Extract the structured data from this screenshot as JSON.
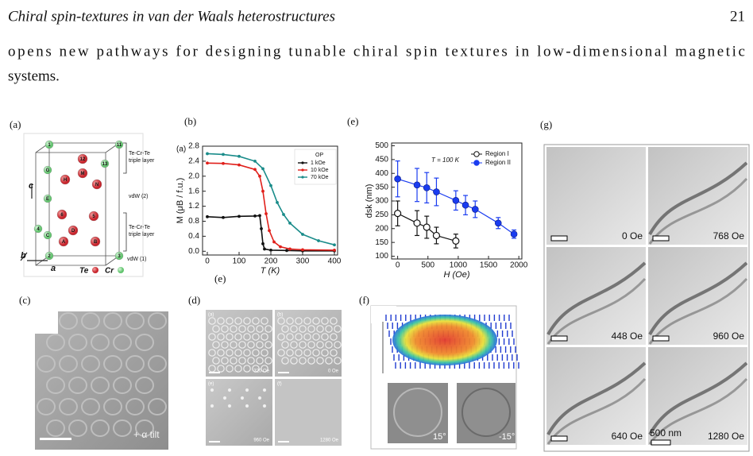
{
  "header": {
    "title": "Chiral spin-textures in van der Waals heterostructures",
    "page": "21"
  },
  "body": {
    "lines": [
      "opens new pathways for designing tunable chiral spin textures in low-dimensional magnetic",
      "systems."
    ]
  },
  "figure": {
    "panel_labels": [
      "(a)",
      "(b)",
      "(e)",
      "(g)",
      "(c)",
      "(d)",
      "(f)",
      "(e)"
    ],
    "panel_a": {
      "layer_top": [
        "Te-Cr-Te",
        "triple layer"
      ],
      "gap_mid": "vdW (2)",
      "layer_bottom": [
        "Te-Cr-Te",
        "triple layer"
      ],
      "gap_bottom": "vdW (1)",
      "axes": [
        "c",
        "b",
        "a"
      ],
      "atom_labels": [
        "1",
        "11",
        "G",
        "M",
        "13",
        "12",
        "H",
        "N",
        "E",
        "6",
        "4",
        "C",
        "D",
        "5",
        "A",
        "B",
        "2",
        "3"
      ],
      "legend": [
        "Te",
        "Cr"
      ]
    },
    "panel_b_inset": "(a)",
    "panel_c": {
      "note": "+ α tilt"
    },
    "panel_d": {
      "sub_labels": [
        "(a)",
        "(b)",
        "(e)",
        "(f)"
      ],
      "fields": [
        "320 Oe",
        "0 Oe",
        "960 Oe",
        "1280 Oe"
      ]
    },
    "panel_f": {
      "angles": [
        "15°",
        "-15°"
      ]
    },
    "panel_g": {
      "fields": [
        "0 Oe",
        "768 Oe",
        "448 Oe",
        "960 Oe",
        "640 Oe",
        "1280 Oe"
      ],
      "scale": "500 nm"
    }
  },
  "chart_data": [
    {
      "type": "line",
      "y_label": "M (μB / f.u.)",
      "x_label": "T (K)",
      "legend_title": "OP",
      "xlim": [
        -15,
        410
      ],
      "ylim": [
        -0.1,
        2.8
      ],
      "xticks": [
        0,
        100,
        200,
        300,
        400
      ],
      "yticks": [
        {
          "value": 0,
          "label": "0.0"
        },
        0.4,
        0.8,
        1.2,
        1.6,
        {
          "value": 2,
          "label": "2.0"
        },
        2.4,
        2.8
      ],
      "series": [
        {
          "name": "1 kOe",
          "color": "#111111",
          "x": [
            0,
            50,
            100,
            150,
            165,
            170,
            175,
            180,
            200,
            250,
            300,
            400
          ],
          "values": [
            0.92,
            0.9,
            0.93,
            0.94,
            0.95,
            0.6,
            0.2,
            0.06,
            0.03,
            0.02,
            0.01,
            0.01
          ]
        },
        {
          "name": "10 kOe",
          "color": "#e0201b",
          "x": [
            0,
            50,
            100,
            150,
            165,
            175,
            185,
            195,
            210,
            230,
            260,
            300,
            400
          ],
          "values": [
            2.35,
            2.34,
            2.3,
            2.18,
            2.0,
            1.6,
            1.0,
            0.55,
            0.25,
            0.12,
            0.06,
            0.04,
            0.03
          ]
        },
        {
          "name": "70 kOe",
          "color": "#1a8c8a",
          "x": [
            0,
            50,
            100,
            150,
            175,
            200,
            220,
            240,
            260,
            300,
            350,
            400
          ],
          "values": [
            2.6,
            2.58,
            2.53,
            2.4,
            2.2,
            1.75,
            1.3,
            0.98,
            0.75,
            0.45,
            0.28,
            0.17
          ]
        }
      ]
    },
    {
      "type": "errorbar",
      "y_label": "dsk (nm)",
      "x_label": "H (Oe)",
      "annotation": "T = 100 K",
      "xlim": [
        -100,
        2050
      ],
      "ylim": [
        90,
        510
      ],
      "xticks": [
        0,
        500,
        1000,
        1500,
        2000
      ],
      "yticks": [
        100,
        150,
        200,
        250,
        300,
        350,
        400,
        450,
        500
      ],
      "series": [
        {
          "name": "Region I",
          "color": "#111111",
          "marker": "open",
          "x": [
            0,
            320,
            480,
            640,
            960
          ],
          "values": [
            255,
            220,
            205,
            175,
            155
          ],
          "errors": [
            45,
            45,
            40,
            30,
            25
          ]
        },
        {
          "name": "Region II",
          "color": "#1a3cf0",
          "marker": "filled",
          "x": [
            0,
            320,
            480,
            640,
            960,
            1120,
            1280,
            1660,
            1920
          ],
          "values": [
            380,
            358,
            348,
            333,
            302,
            285,
            270,
            220,
            180
          ],
          "errors": [
            65,
            60,
            55,
            50,
            35,
            35,
            30,
            20,
            15
          ]
        }
      ]
    }
  ]
}
